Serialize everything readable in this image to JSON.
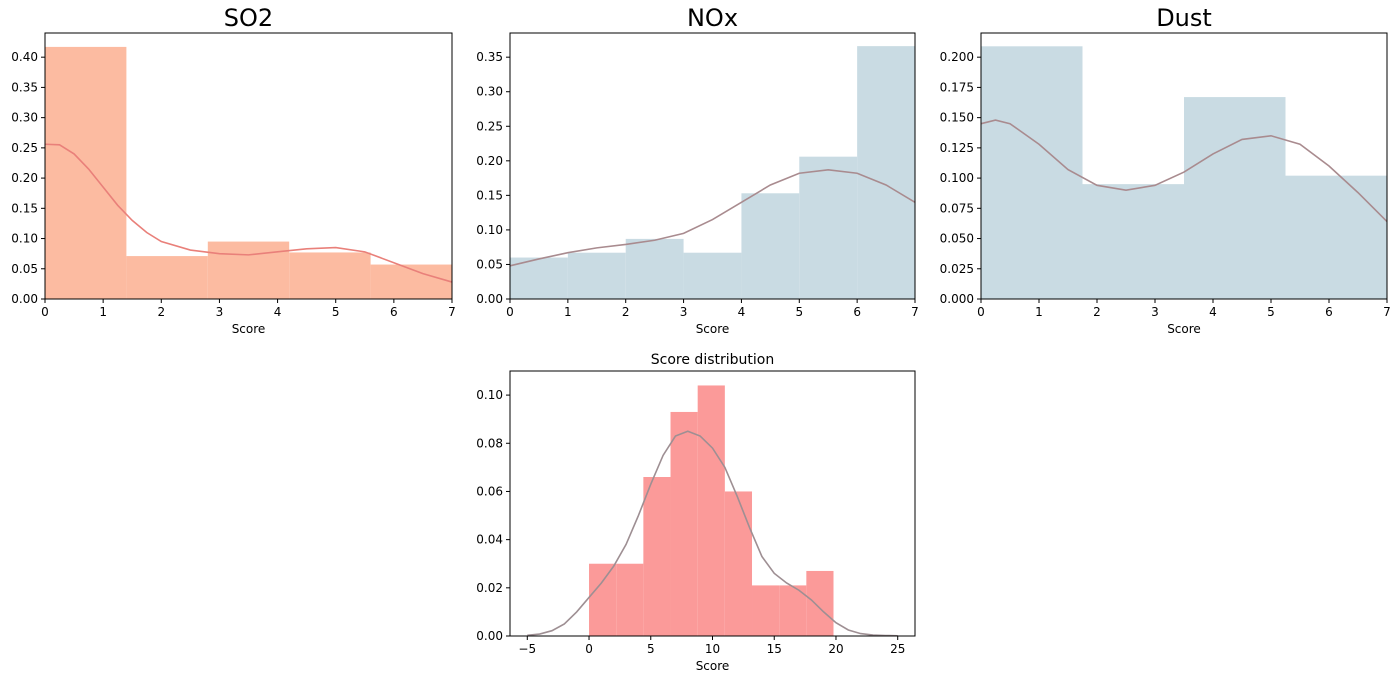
{
  "figure": {
    "background": "#ffffff"
  },
  "chart_data": [
    {
      "type": "bar",
      "id": "so2",
      "title": "SO2",
      "title_size": "large",
      "xlabel": "Score",
      "ylabel": "",
      "xlim": [
        0,
        7
      ],
      "ylim": [
        0,
        0.44
      ],
      "xticks": [
        0,
        1,
        2,
        3,
        4,
        5,
        6,
        7
      ],
      "xtick_labels": [
        "0",
        "1",
        "2",
        "3",
        "4",
        "5",
        "6",
        "7"
      ],
      "yticks": [
        0,
        0.05,
        0.1,
        0.15,
        0.2,
        0.25,
        0.3,
        0.35,
        0.4
      ],
      "ytick_labels": [
        "0.00",
        "0.05",
        "0.10",
        "0.15",
        "0.20",
        "0.25",
        "0.30",
        "0.35",
        "0.40"
      ],
      "bar_color": "#fcbba1",
      "kde_color": "#e9807a",
      "bins": [
        {
          "x0": 0,
          "x1": 1.4,
          "value": 0.417
        },
        {
          "x0": 1.4,
          "x1": 2.8,
          "value": 0.071
        },
        {
          "x0": 2.8,
          "x1": 4.2,
          "value": 0.095
        },
        {
          "x0": 4.2,
          "x1": 5.6,
          "value": 0.077
        },
        {
          "x0": 5.6,
          "x1": 7.0,
          "value": 0.057
        }
      ],
      "kde": {
        "x": [
          0,
          0.25,
          0.5,
          0.75,
          1,
          1.25,
          1.5,
          1.75,
          2,
          2.5,
          3,
          3.5,
          4,
          4.5,
          5,
          5.5,
          6,
          6.5,
          7
        ],
        "y": [
          0.256,
          0.255,
          0.24,
          0.215,
          0.185,
          0.155,
          0.13,
          0.11,
          0.095,
          0.081,
          0.075,
          0.073,
          0.078,
          0.083,
          0.085,
          0.078,
          0.06,
          0.042,
          0.028
        ]
      }
    },
    {
      "type": "bar",
      "id": "nox",
      "title": "NOx",
      "title_size": "large",
      "xlabel": "Score",
      "ylabel": "",
      "xlim": [
        0,
        7
      ],
      "ylim": [
        0,
        0.385
      ],
      "xticks": [
        0,
        1,
        2,
        3,
        4,
        5,
        6,
        7
      ],
      "xtick_labels": [
        "0",
        "1",
        "2",
        "3",
        "4",
        "5",
        "6",
        "7"
      ],
      "yticks": [
        0,
        0.05,
        0.1,
        0.15,
        0.2,
        0.25,
        0.3,
        0.35
      ],
      "ytick_labels": [
        "0.00",
        "0.05",
        "0.10",
        "0.15",
        "0.20",
        "0.25",
        "0.30",
        "0.35"
      ],
      "bar_color": "#c9dbe3",
      "kde_color": "#a98b8f",
      "bins": [
        {
          "x0": 0,
          "x1": 1,
          "value": 0.06
        },
        {
          "x0": 1,
          "x1": 2,
          "value": 0.067
        },
        {
          "x0": 2,
          "x1": 3,
          "value": 0.087
        },
        {
          "x0": 3,
          "x1": 4,
          "value": 0.067
        },
        {
          "x0": 4,
          "x1": 5,
          "value": 0.153
        },
        {
          "x0": 5,
          "x1": 6,
          "value": 0.206
        },
        {
          "x0": 6,
          "x1": 7,
          "value": 0.366
        }
      ],
      "kde": {
        "x": [
          0,
          0.5,
          1,
          1.5,
          2,
          2.5,
          3,
          3.5,
          4,
          4.5,
          5,
          5.5,
          6,
          6.5,
          7
        ],
        "y": [
          0.048,
          0.058,
          0.067,
          0.074,
          0.079,
          0.085,
          0.095,
          0.115,
          0.14,
          0.165,
          0.182,
          0.187,
          0.182,
          0.165,
          0.14
        ]
      }
    },
    {
      "type": "bar",
      "id": "dust",
      "title": "Dust",
      "title_size": "large",
      "xlabel": "Score",
      "ylabel": "",
      "xlim": [
        0,
        7
      ],
      "ylim": [
        0,
        0.22
      ],
      "xticks": [
        0,
        1,
        2,
        3,
        4,
        5,
        6,
        7
      ],
      "xtick_labels": [
        "0",
        "1",
        "2",
        "3",
        "4",
        "5",
        "6",
        "7"
      ],
      "yticks": [
        0,
        0.025,
        0.05,
        0.075,
        0.1,
        0.125,
        0.15,
        0.175,
        0.2
      ],
      "ytick_labels": [
        "0.000",
        "0.025",
        "0.050",
        "0.075",
        "0.100",
        "0.125",
        "0.150",
        "0.175",
        "0.200"
      ],
      "bar_color": "#c9dbe3",
      "kde_color": "#a98b8f",
      "bins": [
        {
          "x0": 0,
          "x1": 1.75,
          "value": 0.209
        },
        {
          "x0": 1.75,
          "x1": 3.5,
          "value": 0.095
        },
        {
          "x0": 3.5,
          "x1": 5.25,
          "value": 0.167
        },
        {
          "x0": 5.25,
          "x1": 7.0,
          "value": 0.102
        }
      ],
      "kde": {
        "x": [
          0,
          0.25,
          0.5,
          1,
          1.5,
          2,
          2.5,
          3,
          3.5,
          4,
          4.5,
          5,
          5.5,
          6,
          6.5,
          7
        ],
        "y": [
          0.145,
          0.148,
          0.145,
          0.128,
          0.107,
          0.094,
          0.09,
          0.094,
          0.105,
          0.12,
          0.132,
          0.135,
          0.128,
          0.11,
          0.088,
          0.064
        ]
      }
    },
    {
      "type": "bar",
      "id": "score",
      "title": "Score distribution",
      "title_size": "small",
      "xlabel": "Score",
      "ylabel": "",
      "xlim": [
        -6.4,
        26.4
      ],
      "ylim": [
        0,
        0.11
      ],
      "xticks": [
        -5,
        0,
        5,
        10,
        15,
        20,
        25
      ],
      "xtick_labels": [
        "−5",
        "0",
        "5",
        "10",
        "15",
        "20",
        "25"
      ],
      "yticks": [
        0,
        0.02,
        0.04,
        0.06,
        0.08,
        0.1
      ],
      "ytick_labels": [
        "0.00",
        "0.02",
        "0.04",
        "0.06",
        "0.08",
        "0.10"
      ],
      "bar_color": "#fb9a99",
      "kde_color": "#9e8f93",
      "bins": [
        {
          "x0": 0,
          "x1": 2.2,
          "value": 0.03
        },
        {
          "x0": 2.2,
          "x1": 4.4,
          "value": 0.03
        },
        {
          "x0": 4.4,
          "x1": 6.6,
          "value": 0.066
        },
        {
          "x0": 6.6,
          "x1": 8.8,
          "value": 0.093
        },
        {
          "x0": 8.8,
          "x1": 11.0,
          "value": 0.104
        },
        {
          "x0": 11.0,
          "x1": 13.2,
          "value": 0.06
        },
        {
          "x0": 13.2,
          "x1": 15.4,
          "value": 0.021
        },
        {
          "x0": 15.4,
          "x1": 17.6,
          "value": 0.021
        },
        {
          "x0": 17.6,
          "x1": 19.8,
          "value": 0.027
        }
      ],
      "kde": {
        "x": [
          -5,
          -4,
          -3,
          -2,
          -1,
          0,
          1,
          2,
          3,
          4,
          5,
          6,
          7,
          8,
          9,
          10,
          11,
          12,
          13,
          14,
          15,
          16,
          17,
          18,
          19,
          20,
          21,
          22,
          23,
          24,
          25
        ],
        "y": [
          0.0003,
          0.0008,
          0.0022,
          0.005,
          0.01,
          0.016,
          0.022,
          0.029,
          0.038,
          0.05,
          0.063,
          0.075,
          0.083,
          0.085,
          0.083,
          0.078,
          0.07,
          0.058,
          0.045,
          0.033,
          0.026,
          0.022,
          0.019,
          0.015,
          0.01,
          0.0055,
          0.0025,
          0.001,
          0.0004,
          0.0002,
          0.0001
        ]
      }
    }
  ]
}
